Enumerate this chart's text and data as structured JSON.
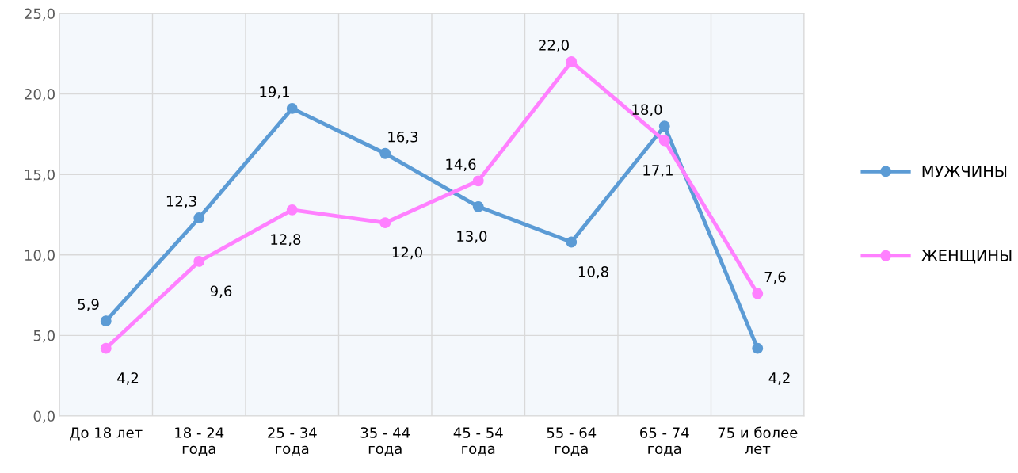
{
  "chart_data": {
    "type": "line",
    "categories": [
      "До 18 лет",
      "18 - 24\nгода",
      "25 - 34\nгода",
      "35 - 44\nгода",
      "45 - 54\nгода",
      "55 - 64\nгода",
      "65 - 74\nгода",
      "75 и более\nлет"
    ],
    "series": [
      {
        "name": "МУЖЧИНЫ",
        "color": "#5b9bd5",
        "values": [
          5.9,
          12.3,
          19.1,
          16.3,
          13.0,
          10.8,
          18.0,
          4.2
        ],
        "value_labels": [
          "5,9",
          "12,3",
          "19,1",
          "16,3",
          "13,0",
          "10,8",
          "18,0",
          "4,2"
        ]
      },
      {
        "name": "ЖЕНЩИНЫ",
        "color": "#ff80ff",
        "values": [
          4.2,
          9.6,
          12.8,
          12.0,
          14.6,
          22.0,
          17.1,
          7.6
        ],
        "value_labels": [
          "4,2",
          "9,6",
          "12,8",
          "12,0",
          "14,6",
          "22,0",
          "17,1",
          "7,6"
        ]
      }
    ],
    "ylim": [
      0,
      25
    ],
    "yticks": [
      {
        "value": 0,
        "label": "0,0"
      },
      {
        "value": 5,
        "label": "5,0"
      },
      {
        "value": 10,
        "label": "10,0"
      },
      {
        "value": 15,
        "label": "15,0"
      },
      {
        "value": 20,
        "label": "20,0"
      },
      {
        "value": 25,
        "label": "25,0"
      }
    ],
    "grid": true,
    "legend": "right",
    "marker": "circle",
    "line_style": "solid"
  }
}
